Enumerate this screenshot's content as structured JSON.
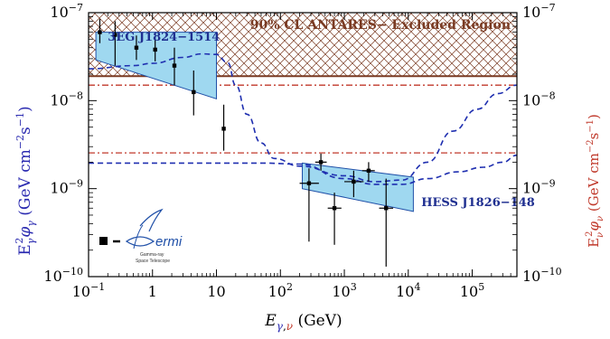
{
  "chart_data": {
    "type": "line",
    "x_scale": "log",
    "y_scale": "log",
    "xlim": [
      0.1,
      500000
    ],
    "ylim": [
      1e-10,
      1e-07
    ],
    "xlabel": {
      "main": "E",
      "sub_gamma": "γ",
      "sub_comma": ",",
      "sub_nu": "ν",
      "unit": " (GeV)"
    },
    "ylabel_left": {
      "main": "E",
      "sub": "γ",
      "power": "2",
      "phi": "φ",
      "phi_sub": "γ",
      "unit_open": " (GeV cm",
      "unit_exp1": "−2",
      "unit_mid": "s",
      "unit_exp2": "−1",
      "unit_close": ")"
    },
    "ylabel_right": {
      "main": "E",
      "sub": "ν",
      "power": "2",
      "phi": "φ",
      "phi_sub": "ν",
      "unit_open": " (GeV cm",
      "unit_exp1": "−2",
      "unit_mid": "s",
      "unit_exp2": "−1",
      "unit_close": ")"
    },
    "x_ticks": [
      {
        "v": 0.1,
        "base": "10",
        "exp": "−1"
      },
      {
        "v": 1,
        "base": "1",
        "exp": ""
      },
      {
        "v": 10,
        "base": "10",
        "exp": ""
      },
      {
        "v": 100,
        "base": "10",
        "exp": "2"
      },
      {
        "v": 1000,
        "base": "10",
        "exp": "3"
      },
      {
        "v": 10000,
        "base": "10",
        "exp": "4"
      },
      {
        "v": 100000,
        "base": "10",
        "exp": "5"
      }
    ],
    "y_ticks": [
      {
        "v": 1e-10,
        "base": "10",
        "exp": "−10"
      },
      {
        "v": 1e-09,
        "base": "10",
        "exp": "−9"
      },
      {
        "v": 1e-08,
        "base": "10",
        "exp": "−8"
      },
      {
        "v": 1e-07,
        "base": "10",
        "exp": "−7"
      }
    ],
    "excluded_region": {
      "label": "90% CL ANTARES− Excluded Region",
      "ymin": 1.9e-08,
      "ymax": 1e-07,
      "color": "#7a3a22"
    },
    "antares_limit_y": 1.9e-08,
    "red_dashdot_lines": [
      1.5e-08,
      2.55e-09
    ],
    "colors": {
      "fermi": "#2050a8",
      "fit_band": "#9fd8f0",
      "antares": "#7a3a22",
      "red_lines": "#c0392b",
      "ylabel_left": "#2a2ab0",
      "ylabel_right": "#c0392b",
      "points": "#000000"
    },
    "series": [
      {
        "name": "3EG J1824−1514",
        "kind": "band",
        "points": [
          [
            0.13,
            6e-08
          ],
          [
            10,
            6e-08
          ],
          [
            10,
            1.05e-08
          ],
          [
            0.13,
            2.9e-08
          ]
        ]
      },
      {
        "name": "HESS J1826−148",
        "kind": "band",
        "points": [
          [
            220,
            1.95e-09
          ],
          [
            12000,
            1.35e-09
          ],
          [
            12000,
            5.5e-10
          ],
          [
            220,
            1e-09
          ]
        ]
      },
      {
        "name": "3EG J1824−1514",
        "kind": "points",
        "points": [
          {
            "x": 0.15,
            "y": 6e-08,
            "ylo": 4.5e-08,
            "yhi": 8.5e-08
          },
          {
            "x": 0.26,
            "y": 5.6e-08,
            "ylo": 2.5e-08,
            "yhi": 8e-08
          },
          {
            "x": 0.56,
            "y": 4e-08,
            "ylo": 2.9e-08,
            "yhi": 5.5e-08
          },
          {
            "x": 1.1,
            "y": 3.8e-08,
            "ylo": 2.8e-08,
            "yhi": 5e-08
          },
          {
            "x": 2.2,
            "y": 2.5e-08,
            "ylo": 1.5e-08,
            "yhi": 4e-08
          },
          {
            "x": 4.4,
            "y": 1.25e-08,
            "ylo": 6.8e-09,
            "yhi": 2.2e-08
          },
          {
            "x": 13,
            "y": 4.8e-09,
            "ylo": 2.7e-09,
            "yhi": 9e-09
          }
        ]
      },
      {
        "name": "HESS J1826−148",
        "kind": "points",
        "points": [
          {
            "x": 280,
            "y": 1.15e-09,
            "ylo": 2.5e-10,
            "yhi": 1.7e-09,
            "xlo": 200,
            "xhi": 400
          },
          {
            "x": 430,
            "y": 2e-09,
            "ylo": 1.6e-09,
            "yhi": 2.5e-09,
            "xlo": 350,
            "xhi": 530
          },
          {
            "x": 700,
            "y": 6e-10,
            "ylo": 2.3e-10,
            "yhi": 9e-10,
            "xlo": 550,
            "xhi": 900
          },
          {
            "x": 1400,
            "y": 1.2e-09,
            "ylo": 8e-10,
            "yhi": 1.6e-09,
            "xlo": 1000,
            "xhi": 2000
          },
          {
            "x": 2400,
            "y": 1.6e-09,
            "ylo": 1.2e-09,
            "yhi": 2e-09,
            "xlo": 1900,
            "xhi": 3000
          },
          {
            "x": 4500,
            "y": 6e-10,
            "ylo": 1.3e-10,
            "yhi": 1.3e-09,
            "xlo": 3500,
            "xhi": 5800
          }
        ]
      },
      {
        "kind": "dashed",
        "points": [
          [
            0.1,
            2.3e-08
          ],
          [
            0.5,
            2.5e-08
          ],
          [
            1,
            2.65e-08
          ],
          [
            3,
            3.1e-08
          ],
          [
            6,
            3.4e-08
          ],
          [
            10,
            3.35e-08
          ],
          [
            15,
            2.7e-08
          ],
          [
            20,
            1.5e-08
          ],
          [
            30,
            7e-09
          ],
          [
            50,
            3.3e-09
          ],
          [
            80,
            2.2e-09
          ],
          [
            200,
            1.8e-09
          ],
          [
            1000,
            1.4e-09
          ],
          [
            3000,
            1.2e-09
          ],
          [
            8000,
            1.25e-09
          ],
          [
            20000,
            2e-09
          ],
          [
            50000,
            4.5e-09
          ],
          [
            120000,
            8e-09
          ],
          [
            250000,
            1.2e-08
          ],
          [
            500000,
            1.5e-08
          ]
        ]
      },
      {
        "kind": "dashed",
        "points": [
          [
            0.1,
            1.95e-09
          ],
          [
            10,
            1.95e-09
          ],
          [
            50,
            1.95e-09
          ],
          [
            200,
            1.9e-09
          ],
          [
            1000,
            1.3e-09
          ],
          [
            3000,
            1.12e-09
          ],
          [
            8000,
            1.12e-09
          ],
          [
            20000,
            1.3e-09
          ],
          [
            60000,
            1.55e-09
          ],
          [
            150000,
            1.75e-09
          ],
          [
            300000,
            2e-09
          ],
          [
            500000,
            2.4e-09
          ]
        ]
      }
    ],
    "annotations": [
      {
        "text": "3EG J1824−1514",
        "x": 0.2,
        "y": 4.8e-08
      },
      {
        "text": "HESS J1826−148",
        "x": 16000,
        "y": 6.3e-10
      }
    ],
    "legend": {
      "position": "bottom-left",
      "marker_label": "■ −",
      "logo_name": "ermi",
      "logo_lines": [
        "Gamma-ray",
        "Space Telescope"
      ]
    }
  }
}
